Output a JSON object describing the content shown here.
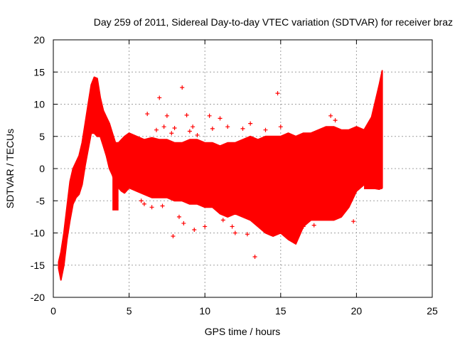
{
  "chart_data": {
    "type": "scatter",
    "title": "Day 259 of 2011, Sidereal Day-to-day VTEC variation (SDTVAR) for receiver braz",
    "xlabel": "GPS time / hours",
    "ylabel": "SDTVAR / TECUs",
    "xlim": [
      0,
      25
    ],
    "ylim": [
      -20,
      20
    ],
    "x_ticks": [
      "0",
      "5",
      "10",
      "15",
      "20",
      "25"
    ],
    "x_tick_values": [
      0,
      5,
      10,
      15,
      20,
      25
    ],
    "y_ticks": [
      "20",
      "15",
      "10",
      "5",
      "0",
      "-5",
      "-10",
      "-15",
      "-20"
    ],
    "y_tick_values": [
      20,
      15,
      10,
      5,
      0,
      -5,
      -10,
      -15,
      -20
    ],
    "grid": true,
    "marker": "+",
    "series_color": "#ff0000",
    "envelope": {
      "x": [
        0.35,
        0.5,
        0.7,
        0.9,
        1.1,
        1.3,
        1.5,
        1.7,
        1.9,
        2.1,
        2.3,
        2.5,
        2.7,
        2.9,
        3.1,
        3.3,
        3.5,
        3.7,
        3.9,
        4.1,
        4.3,
        4.5,
        4.7,
        5.0,
        5.5,
        6.0,
        6.5,
        7.0,
        7.5,
        8.0,
        8.5,
        9.0,
        9.5,
        10.0,
        10.5,
        11.0,
        11.5,
        12.0,
        12.5,
        13.0,
        13.5,
        14.0,
        14.5,
        15.0,
        15.5,
        16.0,
        16.5,
        17.0,
        17.5,
        18.0,
        18.5,
        19.0,
        19.5,
        20.0,
        20.5,
        21.0,
        21.5,
        21.7
      ],
      "upper": [
        -14.5,
        -13.0,
        -10.0,
        -6.0,
        -2.0,
        0.0,
        1.0,
        2.0,
        4.0,
        7.0,
        10.0,
        13.0,
        14.2,
        14.0,
        11.0,
        9.0,
        8.0,
        7.0,
        5.5,
        4.0,
        4.0,
        4.5,
        5.0,
        5.5,
        5.0,
        4.5,
        4.8,
        4.5,
        4.5,
        4.0,
        4.0,
        4.5,
        4.5,
        4.0,
        4.0,
        3.5,
        4.0,
        4.0,
        4.5,
        5.0,
        4.5,
        5.0,
        5.0,
        5.0,
        5.5,
        5.0,
        5.5,
        5.5,
        6.0,
        6.5,
        6.5,
        6.0,
        6.0,
        6.5,
        6.0,
        8.0,
        13.0,
        15.2
      ],
      "lower": [
        -15.5,
        -17.3,
        -15.0,
        -11.0,
        -8.0,
        -5.5,
        -4.5,
        -4.0,
        -2.5,
        0.5,
        3.0,
        5.5,
        5.5,
        5.0,
        5.0,
        3.5,
        2.0,
        0.0,
        -1.0,
        -2.5,
        -3.0,
        -3.5,
        -3.8,
        -3.0,
        -3.5,
        -4.0,
        -4.5,
        -4.5,
        -4.5,
        -5.0,
        -5.0,
        -5.5,
        -5.5,
        -6.0,
        -6.0,
        -7.0,
        -7.5,
        -7.0,
        -7.5,
        -8.0,
        -9.0,
        -10.0,
        -10.5,
        -10.0,
        -11.0,
        -11.7,
        -9.0,
        -8.0,
        -8.0,
        -8.0,
        -8.0,
        -7.5,
        -6.0,
        -3.5,
        -2.5,
        -3.0,
        -3.2,
        -3.0
      ]
    },
    "clusters": [
      {
        "x_range": [
          3.9,
          4.3
        ],
        "y_range": [
          -6.5,
          -1.0
        ]
      },
      {
        "x_range": [
          20.5,
          21.7
        ],
        "y_range": [
          -3.2,
          2.0
        ]
      }
    ],
    "outliers": {
      "x": [
        6.2,
        6.8,
        7.0,
        7.3,
        7.5,
        7.8,
        8.5,
        8.0,
        8.8,
        9.0,
        9.2,
        9.5,
        10.3,
        10.5,
        11.0,
        11.5,
        12.5,
        13.0,
        13.3,
        14.0,
        14.8,
        15.0,
        18.3,
        18.6,
        19.8,
        7.2,
        8.3,
        8.6,
        9.3,
        11.2,
        11.8,
        12.0,
        12.8,
        5.8,
        6.5,
        7.9,
        10.0,
        16.5,
        17.2,
        6.0
      ],
      "y": [
        8.5,
        6.0,
        11.0,
        6.5,
        8.2,
        5.5,
        12.6,
        6.3,
        8.3,
        5.8,
        6.5,
        5.2,
        8.2,
        6.2,
        7.8,
        6.5,
        6.2,
        7.0,
        -13.7,
        6.0,
        11.7,
        6.5,
        8.2,
        7.5,
        -8.2,
        -5.8,
        -7.5,
        -8.5,
        -9.5,
        -8.0,
        -9.0,
        -10.0,
        -10.2,
        -5.0,
        -6.0,
        -10.5,
        -9.0,
        -9.0,
        -8.8,
        -5.5
      ]
    }
  }
}
